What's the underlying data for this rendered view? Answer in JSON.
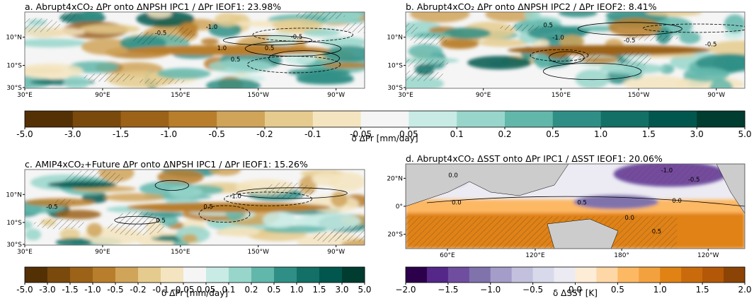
{
  "panels": [
    {
      "title": "a. Abrupt4xCO₂ ΔPr onto ΔNPSH IPC1 / ΔPr IEOF1: 23.98%",
      "lat_ticks": [
        "10°N",
        "10°S",
        "30°S"
      ],
      "lon_ticks": [
        "30°E",
        "90°E",
        "150°E",
        "150°W",
        "90°W"
      ],
      "contour_labels": [
        "-0.5",
        "-1.0",
        "0.5",
        "1.0",
        "0.5",
        "-0.5"
      ]
    },
    {
      "title": "b. Abrupt4xCO₂ ΔPr onto ΔNPSH IPC2 / ΔPr IEOF2: 8.41%",
      "lat_ticks": [
        "10°N",
        "10°S",
        "30°S"
      ],
      "lon_ticks": [
        "30°E",
        "90°E",
        "150°E",
        "150°W",
        "90°W"
      ],
      "contour_labels": [
        "0.5",
        "-0.5",
        "-1.0",
        "-0.5"
      ]
    },
    {
      "title": "c. AMIP4xCO₂+Future ΔPr onto ΔNPSH IPC1 / ΔPr IEOF1: 15.26%",
      "lat_ticks": [
        "10°N",
        "10°S",
        "30°S"
      ],
      "lon_ticks": [
        "30°E",
        "90°E",
        "150°E",
        "150°W",
        "90°W"
      ],
      "contour_labels": [
        "-0.5",
        "0.5",
        "-1.0",
        "0.5"
      ]
    },
    {
      "title": "d. Abrupt4xCO₂ ΔSST onto ΔPr IPC1 / ΔSST IEOF1: 20.06%",
      "lat_ticks": [
        "20°N",
        "0°",
        "20°S"
      ],
      "lon_ticks": [
        "60°E",
        "120°E",
        "180°",
        "120°W"
      ],
      "contour_labels": [
        "0.0",
        "0.0",
        "-1.0",
        "-0.5",
        "0.5",
        "0.0",
        "0.0",
        "0.5"
      ]
    }
  ],
  "colorbars": [
    {
      "label": "δ ΔPr [mm/day]",
      "ticks": [
        "-5.0",
        "-3.0",
        "-1.5",
        "-1.0",
        "-0.5",
        "-0.2",
        "-0.1",
        "-0.05",
        "0.05",
        "0.1",
        "0.2",
        "0.5",
        "1.0",
        "1.5",
        "3.0",
        "5.0"
      ],
      "colors": [
        "#543005",
        "#7a4a0c",
        "#9c6218",
        "#b97e2b",
        "#d0a55a",
        "#e5cb8d",
        "#f4e5c0",
        "#f5f5f5",
        "#c8ebe5",
        "#98d6cb",
        "#62b7ab",
        "#2f8f86",
        "#137066",
        "#01574d",
        "#003c30"
      ]
    },
    {
      "label": "δ ΔPr [mm/day]",
      "ticks": [
        "-5.0",
        "-3.0",
        "-1.5",
        "-1.0",
        "-0.5",
        "-0.2",
        "-0.1",
        "-0.05",
        "0.05",
        "0.1",
        "0.2",
        "0.5",
        "1.0",
        "1.5",
        "3.0",
        "5.0"
      ],
      "colors": [
        "#543005",
        "#7a4a0c",
        "#9c6218",
        "#b97e2b",
        "#d0a55a",
        "#e5cb8d",
        "#f4e5c0",
        "#f5f5f5",
        "#c8ebe5",
        "#98d6cb",
        "#62b7ab",
        "#2f8f86",
        "#137066",
        "#01574d",
        "#003c30"
      ]
    },
    {
      "label": "δ ΔSST [K]",
      "ticks": [
        "−2.0",
        "−1.5",
        "−1.0",
        "−0.5",
        "0.0",
        "0.5",
        "1.0",
        "1.5",
        "2.0"
      ],
      "colors": [
        "#2d004b",
        "#542788",
        "#6f4e9f",
        "#8073ac",
        "#a49dc9",
        "#c2c0dc",
        "#d8daeb",
        "#ecebf3",
        "#fdecd6",
        "#fdd7a6",
        "#fdb863",
        "#f3a13f",
        "#e08214",
        "#c96b0c",
        "#b35806",
        "#8b4405"
      ]
    }
  ]
}
